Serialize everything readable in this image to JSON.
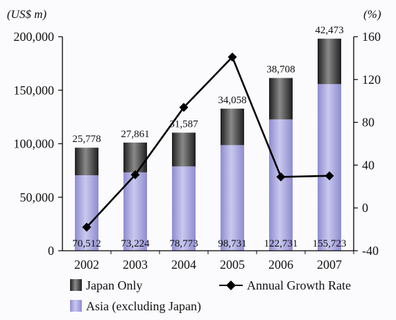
{
  "chart_data": {
    "type": "bar",
    "categories": [
      "2002",
      "2003",
      "2004",
      "2005",
      "2006",
      "2007"
    ],
    "series": [
      {
        "name": "Asia (excluding Japan)",
        "kind": "bar-stacked",
        "axis": "left",
        "color": "#a7a5de",
        "values": [
          70512,
          73224,
          78773,
          98731,
          122731,
          155723
        ]
      },
      {
        "name": "Japan Only",
        "kind": "bar-stacked",
        "axis": "left",
        "color": "#3c3c3c",
        "values": [
          25778,
          27861,
          31587,
          34058,
          38708,
          42473
        ]
      },
      {
        "name": "Annual Growth Rate",
        "kind": "line",
        "axis": "right",
        "color": "#000000",
        "values": [
          -18,
          31,
          94,
          141,
          29,
          30
        ]
      }
    ],
    "bar_labels_top": [
      "25,778",
      "27,861",
      "31,587",
      "34,058",
      "38,708",
      "42,473"
    ],
    "bar_labels_bottom": [
      "70,512",
      "73,224",
      "78,773",
      "98,731",
      "122,731",
      "155,723"
    ],
    "left_axis": {
      "label": "(US$ m)",
      "ylim": [
        0,
        200000
      ],
      "ticks": [
        0,
        50000,
        100000,
        150000,
        200000
      ],
      "tick_labels": [
        "0",
        "50,000",
        "100,000",
        "150,000",
        "200,000"
      ]
    },
    "right_axis": {
      "label": "(%)",
      "ylim": [
        -40,
        160
      ],
      "ticks": [
        -40,
        0,
        40,
        80,
        120,
        160
      ],
      "tick_labels": [
        "-40",
        "0",
        "40",
        "80",
        "120",
        "160"
      ]
    },
    "legend": [
      {
        "label": "Japan Only",
        "marker": "box-dark"
      },
      {
        "label": "Annual Growth Rate",
        "marker": "line-diamond"
      },
      {
        "label": "Asia (excluding Japan)",
        "marker": "box-light"
      }
    ],
    "legend_position": "bottom",
    "grid": false,
    "xlabel": ""
  }
}
